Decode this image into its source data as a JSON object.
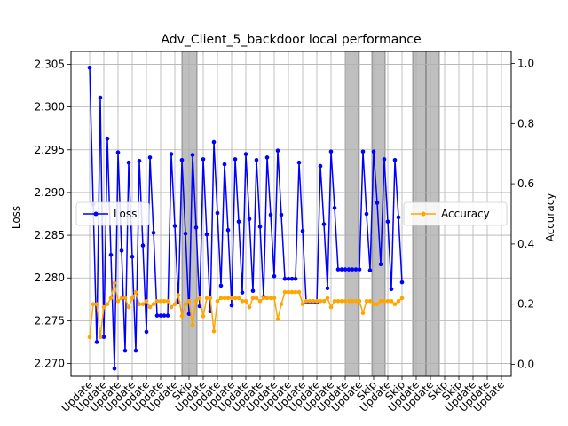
{
  "chart_data": {
    "type": "line",
    "title": "Adv_Client_5_backdoor local performance",
    "ylabel_left": "Loss",
    "ylabel_right": "Accuracy",
    "ylim_left": [
      2.2685,
      2.3065
    ],
    "ylim_right": [
      -0.04,
      1.04
    ],
    "yticks_left": [
      2.27,
      2.275,
      2.28,
      2.285,
      2.29,
      2.295,
      2.3,
      2.305
    ],
    "yticks_right": [
      0.0,
      0.2,
      0.4,
      0.6,
      0.8,
      1.0
    ],
    "grid": true,
    "x_count": 89,
    "xtick_every": 4,
    "xtick_labels": [
      "Update",
      "Update",
      "Update",
      "Update",
      "Update",
      "Update",
      "Update",
      "Skip",
      "Update",
      "Update",
      "Update",
      "Update",
      "Update",
      "Update",
      "Update",
      "Update",
      "Update",
      "Update",
      "Update",
      "Update",
      "Skip",
      "Update",
      "Skip",
      "Update",
      "Update",
      "Skip",
      "Skip",
      "Update",
      "Update",
      "Update"
    ],
    "xtick_label_positions": [
      0,
      1,
      2,
      3,
      4,
      5,
      6,
      7,
      8,
      9,
      10,
      11,
      12,
      13,
      14,
      15,
      16,
      17,
      18,
      19,
      20,
      21,
      22,
      24,
      25,
      26,
      27,
      28,
      29,
      30
    ],
    "skip_spans": [
      [
        28,
        31
      ],
      [
        76,
        79
      ],
      [
        82,
        85
      ],
      [
        94,
        97
      ],
      [
        97,
        100
      ]
    ],
    "legend_left": {
      "label": "Loss",
      "placement": "center-left"
    },
    "legend_right": {
      "label": "Accuracy",
      "placement": "center-right"
    },
    "series": [
      {
        "name": "Loss",
        "axis": "left",
        "color": "#0000ff",
        "values": [
          2.3046,
          2.2886,
          2.2725,
          2.3011,
          2.2731,
          2.2963,
          2.2827,
          2.2694,
          2.2947,
          2.2832,
          2.2715,
          2.2935,
          2.2825,
          2.2715,
          2.2937,
          2.2838,
          2.2737,
          2.2941,
          2.2853,
          2.2756,
          2.2756,
          2.2756,
          2.2756,
          2.2945,
          2.2861,
          2.2772,
          2.2938,
          2.2852,
          2.2758,
          2.2944,
          2.2859,
          2.2767,
          2.2939,
          2.2851,
          2.2761,
          2.2959,
          2.2876,
          2.2791,
          2.2933,
          2.2856,
          2.2768,
          2.2939,
          2.2866,
          2.2783,
          2.2945,
          2.2869,
          2.2785,
          2.2938,
          2.286,
          2.2778,
          2.2941,
          2.2874,
          2.2802,
          2.2949,
          2.2874,
          2.2799,
          2.2799,
          2.2799,
          2.2799,
          2.2935,
          2.2855,
          2.2772,
          2.2772,
          2.2772,
          2.2772,
          2.2931,
          2.2863,
          2.2788,
          2.2948,
          2.2882,
          2.281,
          2.281,
          2.281,
          2.281,
          2.281,
          2.281,
          2.281,
          2.2948,
          2.2875,
          2.2809,
          2.2948,
          2.2888,
          2.2816,
          2.2939,
          2.2866,
          2.2787,
          2.2938,
          2.2871,
          2.2795
        ]
      },
      {
        "name": "Accuracy",
        "axis": "right",
        "color": "#ffa500",
        "values": [
          0.09,
          0.2,
          0.2,
          0.09,
          0.19,
          0.2,
          0.22,
          0.27,
          0.21,
          0.22,
          0.22,
          0.19,
          0.22,
          0.24,
          0.2,
          0.2,
          0.21,
          0.19,
          0.2,
          0.21,
          0.21,
          0.21,
          0.21,
          0.19,
          0.2,
          0.23,
          0.16,
          0.2,
          0.21,
          0.13,
          0.21,
          0.22,
          0.16,
          0.22,
          0.22,
          0.11,
          0.21,
          0.22,
          0.22,
          0.22,
          0.22,
          0.22,
          0.22,
          0.21,
          0.21,
          0.19,
          0.22,
          0.22,
          0.21,
          0.22,
          0.22,
          0.22,
          0.22,
          0.15,
          0.2,
          0.24,
          0.24,
          0.24,
          0.24,
          0.24,
          0.2,
          0.21,
          0.21,
          0.21,
          0.21,
          0.21,
          0.21,
          0.22,
          0.19,
          0.21,
          0.21,
          0.21,
          0.21,
          0.21,
          0.21,
          0.21,
          0.21,
          0.17,
          0.21,
          0.21,
          0.2,
          0.2,
          0.21,
          0.21,
          0.21,
          0.21,
          0.2,
          0.21,
          0.22
        ]
      }
    ]
  }
}
